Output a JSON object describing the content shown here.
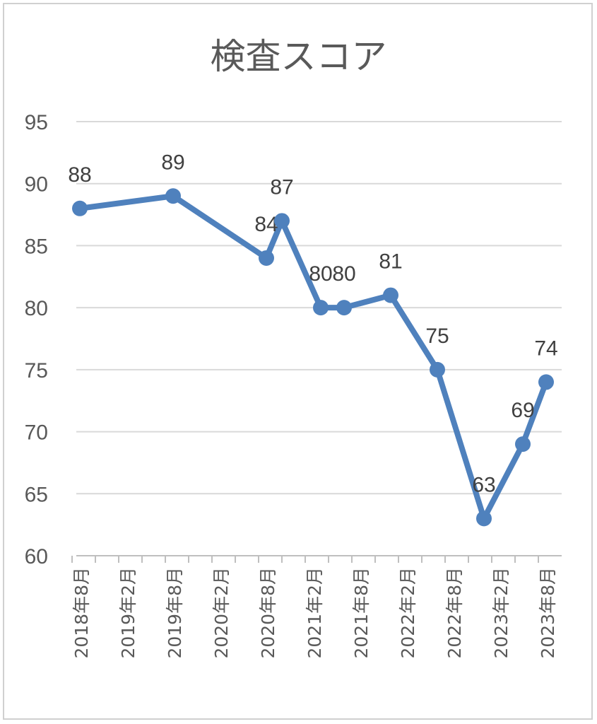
{
  "chart_data": {
    "type": "line",
    "title": "検査スコア",
    "xlabel": "",
    "ylabel": "",
    "ylim": [
      60,
      95
    ],
    "y_ticks": [
      60,
      65,
      70,
      75,
      80,
      85,
      90,
      95
    ],
    "x_ticks": [
      "2018年8月",
      "2019年2月",
      "2019年8月",
      "2020年2月",
      "2020年8月",
      "2021年2月",
      "2021年8月",
      "2022年2月",
      "2022年8月",
      "2023年2月",
      "2023年8月"
    ],
    "grid": true,
    "legend": "none",
    "color": "#4f81bd",
    "points": [
      {
        "date": "2018-08",
        "value": 88
      },
      {
        "date": "2019-08",
        "value": 89
      },
      {
        "date": "2020-08",
        "value": 84
      },
      {
        "date": "2020-10",
        "value": 87
      },
      {
        "date": "2021-03",
        "value": 80
      },
      {
        "date": "2021-06",
        "value": 80
      },
      {
        "date": "2021-12",
        "value": 81
      },
      {
        "date": "2022-06",
        "value": 75
      },
      {
        "date": "2022-12",
        "value": 63
      },
      {
        "date": "2023-05",
        "value": 69
      },
      {
        "date": "2023-08",
        "value": 74
      }
    ]
  }
}
